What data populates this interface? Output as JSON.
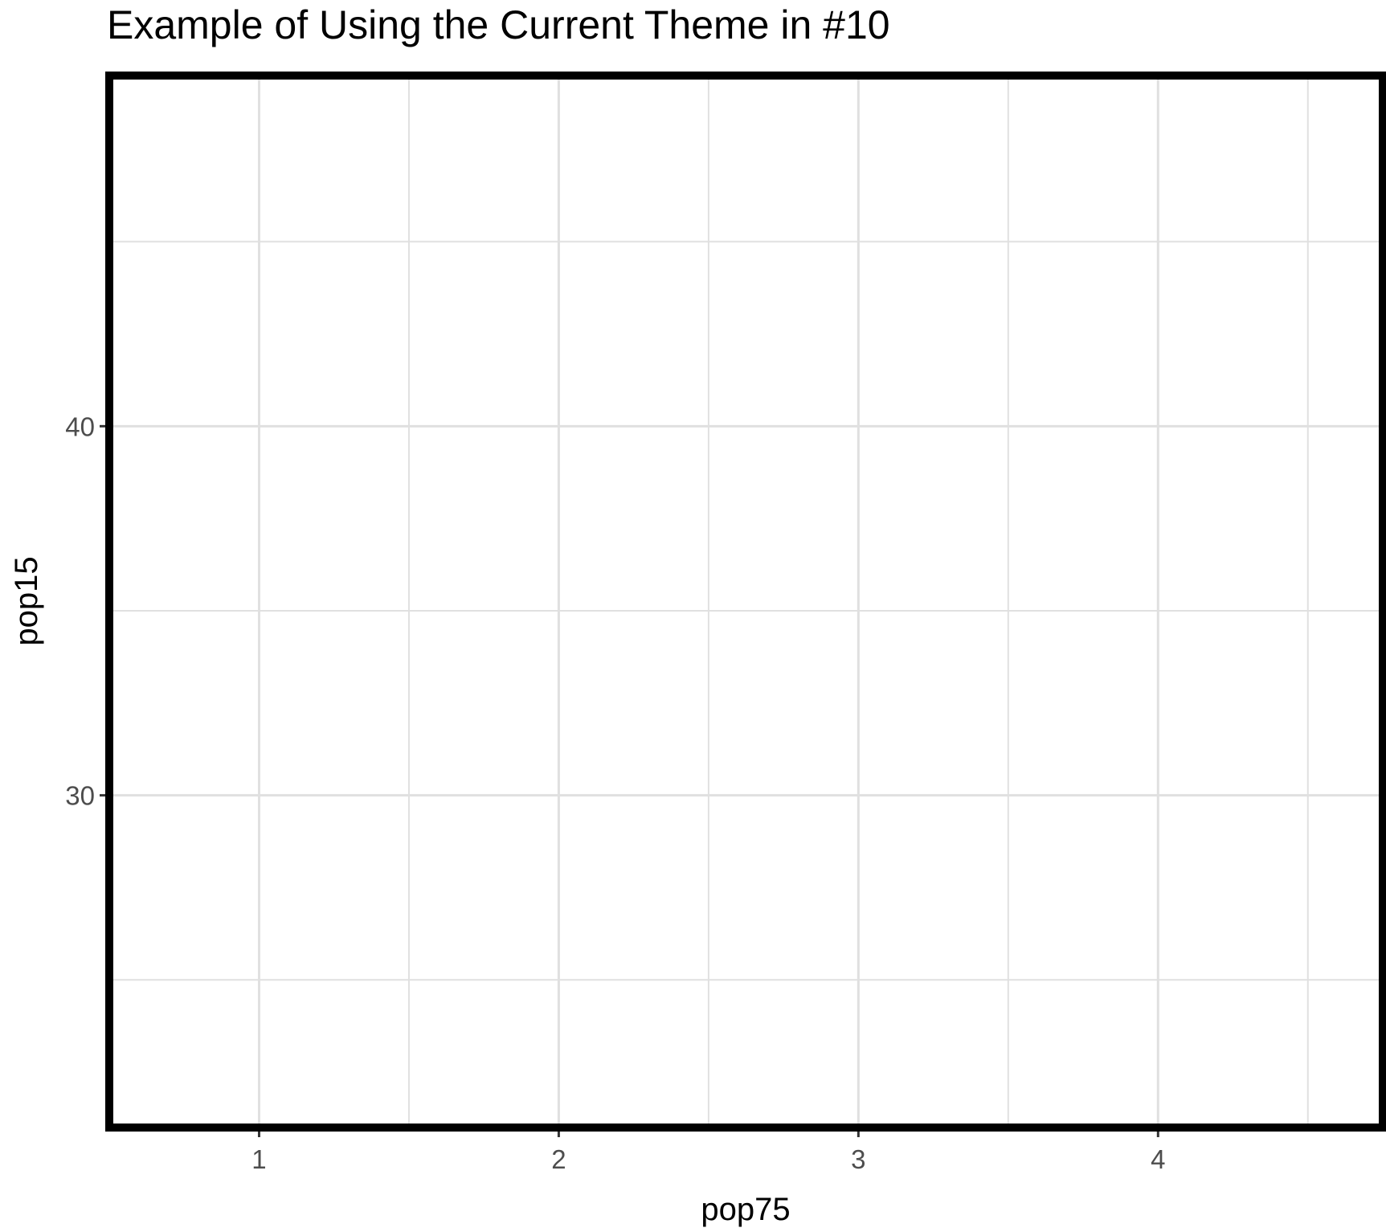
{
  "chart_data": {
    "type": "scatter",
    "title": "Example of Using the Current Theme in #10",
    "xlabel": "pop75",
    "ylabel": "pop15",
    "x_ticks": [
      1,
      2,
      3,
      4
    ],
    "y_ticks": [
      30,
      40
    ],
    "xlim": [
      0.5,
      4.75
    ],
    "ylim": [
      21,
      49.5
    ],
    "series": [
      {
        "x": [],
        "y": []
      }
    ],
    "grid": true,
    "panel_border": true,
    "colors": {
      "background": "#ffffff",
      "grid": "#e0e0e0",
      "border": "#000000",
      "tick_text": "#4d4d4d",
      "text": "#000000"
    }
  }
}
